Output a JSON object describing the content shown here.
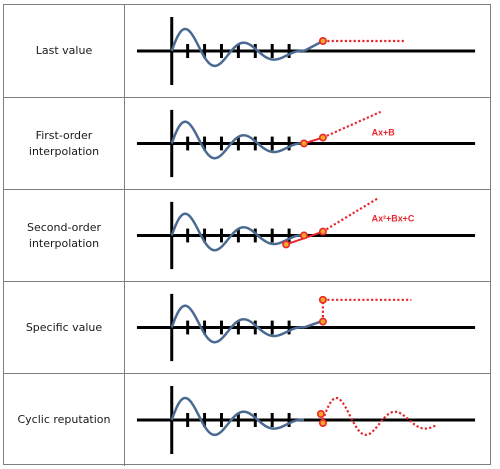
{
  "rows": [
    {
      "label": "Last value",
      "method": "last-value",
      "formula": ""
    },
    {
      "label": "First-order\ninterpolation",
      "method": "first-order",
      "formula": "Ax+B"
    },
    {
      "label": "Second-order\ninterpolation",
      "method": "second-order",
      "formula": "Ax²+Bx+C"
    },
    {
      "label": "Specific value",
      "method": "specific-value",
      "formula": ""
    },
    {
      "label": "Cyclic reputation",
      "method": "cyclic",
      "formula": ""
    }
  ],
  "colors": {
    "signal": "#4a6a92",
    "extrapolation": "#e8262d",
    "marker_fill": "#f5a623",
    "axis": "#000000"
  }
}
